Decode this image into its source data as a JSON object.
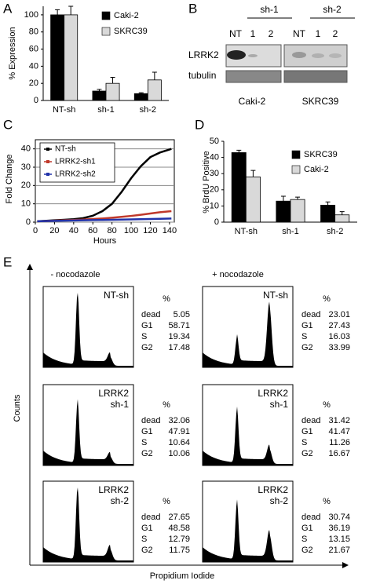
{
  "panel_labels": [
    "A",
    "B",
    "C",
    "D",
    "E"
  ],
  "chart_data": [
    {
      "type": "bar",
      "ylabel": "% Expression",
      "categories": [
        "NT-sh",
        "sh-1",
        "sh-2"
      ],
      "series": [
        {
          "name": "Caki-2",
          "color": "#000000",
          "values": [
            100,
            11,
            8
          ],
          "errors": [
            6,
            2,
            1
          ]
        },
        {
          "name": "SKRC39",
          "color": "#d9d9d9",
          "values": [
            100,
            20,
            24
          ],
          "errors": [
            10,
            7,
            9
          ]
        }
      ],
      "ylim": [
        0,
        110
      ],
      "yticks": [
        0,
        20,
        40,
        60,
        80,
        100
      ]
    },
    {
      "type": "line",
      "ylabel": "Fold Change",
      "xlabel": "Hours",
      "x": [
        2,
        10,
        20,
        30,
        40,
        50,
        60,
        70,
        80,
        90,
        100,
        110,
        120,
        130,
        142
      ],
      "series": [
        {
          "name": "NT-sh",
          "color": "#000000",
          "values": [
            0.5,
            0.7,
            1,
            1.3,
            1.6,
            2.2,
            3.5,
            6,
            10,
            16.5,
            24,
            30.5,
            35.5,
            38,
            40
          ]
        },
        {
          "name": "LRRK2-sh1",
          "color": "#c0392b",
          "values": [
            0.5,
            0.6,
            0.8,
            1,
            1.2,
            1.4,
            1.7,
            2,
            2.4,
            2.9,
            3.4,
            4,
            4.7,
            5.4,
            6
          ]
        },
        {
          "name": "LRRK2-sh2",
          "color": "#2233aa",
          "values": [
            0.5,
            0.6,
            0.7,
            0.8,
            0.9,
            1,
            1.1,
            1.2,
            1.3,
            1.4,
            1.5,
            1.6,
            1.7,
            1.8,
            2
          ]
        }
      ],
      "xlim": [
        0,
        145
      ],
      "xticks": [
        0,
        20,
        40,
        60,
        80,
        100,
        120,
        140
      ],
      "ylim": [
        0,
        45
      ],
      "yticks": [
        0,
        10,
        20,
        30,
        40
      ],
      "grid": true
    },
    {
      "type": "bar",
      "ylabel": "% BrdU Positive",
      "categories": [
        "NT-sh",
        "sh-1",
        "sh-2"
      ],
      "series": [
        {
          "name": "SKRC39",
          "color": "#000000",
          "values": [
            43,
            13,
            10.5
          ],
          "errors": [
            1.5,
            3,
            2
          ]
        },
        {
          "name": "Caki-2",
          "color": "#d9d9d9",
          "values": [
            28,
            14,
            4.5
          ],
          "errors": [
            4,
            1.5,
            2
          ]
        }
      ],
      "ylim": [
        0,
        50
      ],
      "yticks": [
        0,
        10,
        20,
        30,
        40,
        50
      ]
    }
  ],
  "blot": {
    "groups": [
      "sh-1",
      "sh-2"
    ],
    "lanes": [
      "NT",
      "1",
      "2",
      "NT",
      "1",
      "2"
    ],
    "rows": [
      "LRRK2",
      "tubulin"
    ],
    "cell_lines": [
      "Caki-2",
      "SKRC39"
    ]
  },
  "flow": {
    "columns": [
      "- nocodazole",
      "+ nocodazole"
    ],
    "y_axis": "Counts",
    "x_axis": "Propidium Iodide",
    "panels": [
      {
        "label": [
          "NT-sh"
        ],
        "header": "%",
        "rows": [
          [
            "dead",
            "5.05"
          ],
          [
            "G1",
            "58.71"
          ],
          [
            "S",
            "19.34"
          ],
          [
            "G2",
            "17.48"
          ]
        ]
      },
      {
        "label": [
          "NT-sh"
        ],
        "header": "%",
        "rows": [
          [
            "dead",
            "23.01"
          ],
          [
            "G1",
            "27.43"
          ],
          [
            "S",
            "16.03"
          ],
          [
            "G2",
            "33.99"
          ]
        ]
      },
      {
        "label": [
          "LRRK2",
          "sh-1"
        ],
        "header": "%",
        "rows": [
          [
            "dead",
            "32.06"
          ],
          [
            "G1",
            "47.91"
          ],
          [
            "S",
            "10.64"
          ],
          [
            "G2",
            "10.06"
          ]
        ]
      },
      {
        "label": [
          "LRRK2",
          "sh-1"
        ],
        "header": "%",
        "rows": [
          [
            "dead",
            "31.42"
          ],
          [
            "G1",
            "41.47"
          ],
          [
            "S",
            "11.26"
          ],
          [
            "G2",
            "16.67"
          ]
        ]
      },
      {
        "label": [
          "LRRK2",
          "sh-2"
        ],
        "header": "%",
        "rows": [
          [
            "dead",
            "27.65"
          ],
          [
            "G1",
            "48.58"
          ],
          [
            "S",
            "12.79"
          ],
          [
            "G2",
            "11.75"
          ]
        ]
      },
      {
        "label": [
          "LRRK2",
          "sh-2"
        ],
        "header": "%",
        "rows": [
          [
            "dead",
            "30.74"
          ],
          [
            "G1",
            "36.19"
          ],
          [
            "S",
            "13.15"
          ],
          [
            "G2",
            "21.67"
          ]
        ]
      }
    ]
  }
}
